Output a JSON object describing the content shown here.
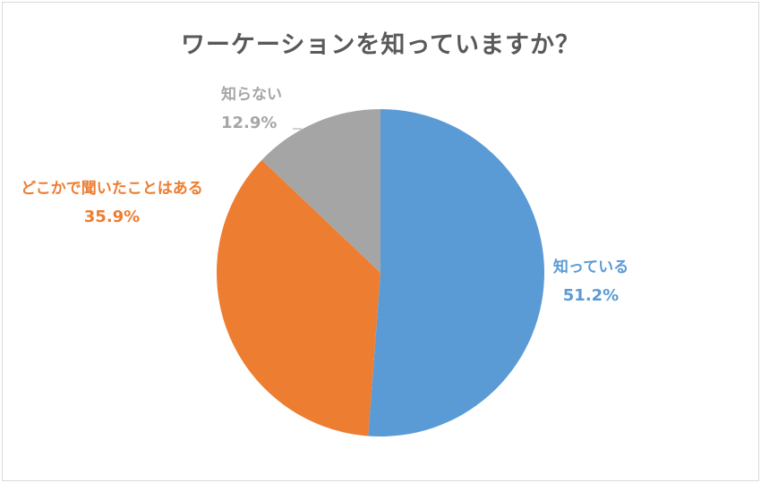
{
  "chart_data": {
    "type": "pie",
    "title": "ワーケーションを知っていますか？",
    "categories": [
      "知っている",
      "どこかで聞いたことはある",
      "知らない"
    ],
    "values": [
      51.2,
      35.9,
      12.9
    ],
    "labels": [
      "51.2%",
      "35.9%",
      "12.9%"
    ],
    "colors": [
      "#5b9bd5",
      "#ed7d31",
      "#a5a5a5"
    ],
    "start_angle": "12 o'clock, clockwise",
    "legend": "none (data labels beside slices)"
  },
  "labels": {
    "known": {
      "name": "知っている",
      "pct": "51.2%"
    },
    "heard": {
      "name": "どこかで聞いたことはある",
      "pct": "35.9%"
    },
    "unknown": {
      "name": "知らない",
      "pct": "12.9%"
    }
  }
}
